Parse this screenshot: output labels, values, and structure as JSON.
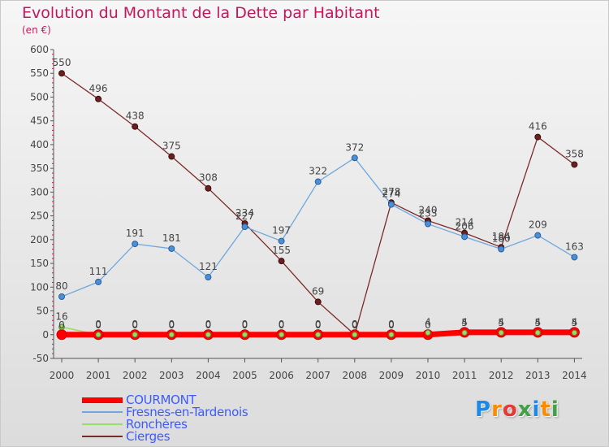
{
  "title": "Evolution du Montant de la Dette par Habitant",
  "subtitle": "(en €)",
  "logo": {
    "text": "Proxiti",
    "colors": [
      "#1e88e5",
      "#fb8c00",
      "#e53935",
      "#43a047",
      "#1e88e5",
      "#fb8c00",
      "#43a047"
    ]
  },
  "chart_data": {
    "type": "line",
    "title": "Evolution du Montant de la Dette par Habitant",
    "ylabel": "(en €)",
    "x": [
      "2000",
      "2001",
      "2002",
      "2003",
      "2004",
      "2005",
      "2006",
      "2007",
      "2008",
      "2009",
      "2010",
      "2011",
      "2012",
      "2013",
      "2014"
    ],
    "ylim": [
      -50,
      600
    ],
    "yticks": [
      -50,
      0,
      50,
      100,
      150,
      200,
      250,
      300,
      350,
      400,
      450,
      500,
      550,
      600
    ],
    "grid": false,
    "legend_position": "bottom-left",
    "series": [
      {
        "name": "COURMONT",
        "color": "#ff0000",
        "values": [
          0,
          0,
          0,
          0,
          0,
          0,
          0,
          0,
          0,
          0,
          0,
          5,
          5,
          5,
          5
        ],
        "labels": [
          "0",
          "0",
          "0",
          "0",
          "0",
          "0",
          "0",
          "0",
          "0",
          "0",
          "0",
          "5",
          "5",
          "5",
          "5"
        ]
      },
      {
        "name": "Fresnes-en-Tardenois",
        "color": "#6fa8dc",
        "values": [
          80,
          111,
          191,
          181,
          121,
          227,
          197,
          322,
          372,
          274,
          233,
          206,
          180,
          209,
          163
        ],
        "labels": [
          "80",
          "111",
          "191",
          "181",
          "121",
          "227",
          "197",
          "322",
          "372",
          "274",
          "233",
          "206",
          "180",
          "209",
          "163"
        ]
      },
      {
        "name": "Ronchères",
        "color": "#99dd66",
        "values": [
          16,
          0,
          0,
          0,
          0,
          0,
          0,
          0,
          0,
          0,
          4,
          4,
          4,
          4,
          4
        ],
        "labels": [
          "16",
          "0",
          "0",
          "0",
          "0",
          "0",
          "0",
          "0",
          "0",
          "0",
          "4",
          "4",
          "4",
          "4",
          "4"
        ]
      },
      {
        "name": "Cierges",
        "color": "#7b2a2a",
        "values": [
          550,
          496,
          438,
          375,
          308,
          234,
          155,
          69,
          0,
          278,
          240,
          214,
          184,
          416,
          358
        ],
        "labels": [
          "550",
          "496",
          "438",
          "375",
          "308",
          "234",
          "155",
          "69",
          "0",
          "278",
          "240",
          "214",
          "184",
          "416",
          "358"
        ]
      }
    ]
  }
}
